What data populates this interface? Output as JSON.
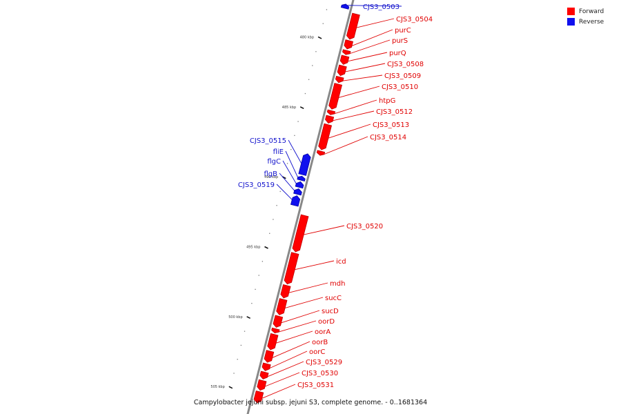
{
  "legend": [
    {
      "label": "Forward",
      "color": "#ff0000"
    },
    {
      "label": "Reverse",
      "color": "#1010ee"
    }
  ],
  "footer": "Campylobacter jejuni subsp. jejuni S3, complete genome. - 0..1681364",
  "colors": {
    "forward": "#ff0000",
    "forward_edge": "#b30000",
    "reverse": "#1010ee",
    "reverse_edge": "#000099",
    "backbone": "#888888"
  },
  "ticks": [
    {
      "label": "480 kbp",
      "kbp": 480
    },
    {
      "label": "485 kbp",
      "kbp": 485
    },
    {
      "label": "490 kbp",
      "kbp": 490
    },
    {
      "label": "495 kbp",
      "kbp": 495
    },
    {
      "label": "500 kbp",
      "kbp": 500
    },
    {
      "label": "505 kbp",
      "kbp": 505
    }
  ],
  "genes": [
    {
      "label": "CJS3_0503",
      "strand": "reverse",
      "start_kbp": 477.3,
      "end_kbp": 477.6
    },
    {
      "label": "CJS3_0504",
      "strand": "forward",
      "start_kbp": 477.8,
      "end_kbp": 479.6
    },
    {
      "label": "purC",
      "strand": "forward",
      "start_kbp": 479.7,
      "end_kbp": 480.3
    },
    {
      "label": "purS",
      "strand": "forward",
      "start_kbp": 480.4,
      "end_kbp": 480.7
    },
    {
      "label": "purQ",
      "strand": "forward",
      "start_kbp": 480.8,
      "end_kbp": 481.4
    },
    {
      "label": "CJS3_0508",
      "strand": "forward",
      "start_kbp": 481.5,
      "end_kbp": 482.2
    },
    {
      "label": "CJS3_0509",
      "strand": "forward",
      "start_kbp": 482.3,
      "end_kbp": 482.7
    },
    {
      "label": "CJS3_0510",
      "strand": "forward",
      "start_kbp": 482.8,
      "end_kbp": 484.6
    },
    {
      "label": "htpG",
      "strand": "forward",
      "start_kbp": 484.7,
      "end_kbp": 485.0
    },
    {
      "label": "CJS3_0512",
      "strand": "forward",
      "start_kbp": 485.1,
      "end_kbp": 485.6
    },
    {
      "label": "CJS3_0513",
      "strand": "forward",
      "start_kbp": 485.7,
      "end_kbp": 487.5
    },
    {
      "label": "CJS3_0515",
      "strand": "reverse",
      "start_kbp": 488.0,
      "end_kbp": 489.5
    },
    {
      "label": "fliE",
      "strand": "reverse",
      "start_kbp": 489.6,
      "end_kbp": 489.9
    },
    {
      "label": "flgC",
      "strand": "reverse",
      "start_kbp": 490.0,
      "end_kbp": 490.4
    },
    {
      "label": "flgB",
      "strand": "reverse",
      "start_kbp": 490.5,
      "end_kbp": 490.9
    },
    {
      "label": "CJS3_0519",
      "strand": "reverse",
      "start_kbp": 491.0,
      "end_kbp": 491.7
    },
    {
      "label": "CJS3_0520",
      "strand": "forward",
      "start_kbp": 492.2,
      "end_kbp": 494.8
    },
    {
      "label": "icd",
      "strand": "forward",
      "start_kbp": 494.9,
      "end_kbp": 497.1
    },
    {
      "label": "mdh",
      "strand": "forward",
      "start_kbp": 497.2,
      "end_kbp": 498.1
    },
    {
      "label": "sucC",
      "strand": "forward",
      "start_kbp": 498.2,
      "end_kbp": 499.3
    },
    {
      "label": "sucD",
      "strand": "forward",
      "start_kbp": 499.4,
      "end_kbp": 500.2
    },
    {
      "label": "oorD",
      "strand": "forward",
      "start_kbp": 500.3,
      "end_kbp": 500.6
    },
    {
      "label": "oorA",
      "strand": "forward",
      "start_kbp": 500.7,
      "end_kbp": 501.8
    },
    {
      "label": "oorB",
      "strand": "forward",
      "start_kbp": 501.9,
      "end_kbp": 502.7
    },
    {
      "label": "oorC",
      "strand": "forward",
      "start_kbp": 502.8,
      "end_kbp": 503.3
    },
    {
      "label": "CJS3_0529",
      "strand": "forward",
      "start_kbp": 503.4,
      "end_kbp": 503.9
    },
    {
      "label": "CJS3_0530",
      "strand": "forward",
      "start_kbp": 504.0,
      "end_kbp": 504.7
    },
    {
      "label": "CJS3_0531",
      "strand": "forward",
      "start_kbp": 504.8,
      "end_kbp": 505.6
    },
    {
      "label": "CJS3_0514",
      "strand": "forward",
      "start_kbp": 487.6,
      "end_kbp": 487.9
    }
  ]
}
